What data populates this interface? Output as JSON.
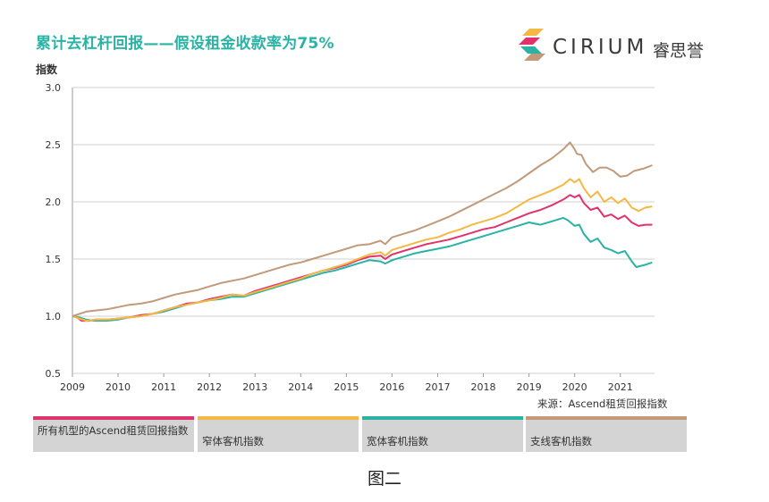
{
  "header": {
    "title": "累计去杠杆回报——假设租金收款率为75%",
    "logo_text": "CIRIUM",
    "logo_cn": "睿思誉"
  },
  "source_note": "来源：Ascend租赁回报指数",
  "figure_caption": "图二",
  "colors": {
    "title": "#2ab3a5",
    "all": "#e0336e",
    "narrow": "#f4b943",
    "wide": "#2ab3a5",
    "regional": "#c29a7a"
  },
  "chart_data": {
    "type": "line",
    "title": "累计去杠杆回报——假设租金收款率为75%",
    "ylabel": "指数",
    "xlabel": "",
    "xlim": [
      2009,
      2021.75
    ],
    "ylim": [
      0.5,
      3.0
    ],
    "yticks": [
      "0.5",
      "1.0",
      "1.5",
      "2.0",
      "2.5",
      "3.0"
    ],
    "xticks": [
      "2009",
      "2010",
      "2011",
      "2012",
      "2013",
      "2014",
      "2015",
      "2016",
      "2017",
      "2018",
      "2019",
      "2020",
      "2021"
    ],
    "grid": "horizontal",
    "legend_position": "bottom",
    "series": [
      {
        "name": "所有机型的Ascend租赁回报指数",
        "color": "#e0336e",
        "points": [
          [
            2009.0,
            1.0
          ],
          [
            2009.1,
            0.99
          ],
          [
            2009.2,
            0.96
          ],
          [
            2009.35,
            0.96
          ],
          [
            2009.5,
            0.97
          ],
          [
            2009.75,
            0.97
          ],
          [
            2010.0,
            0.98
          ],
          [
            2010.25,
            0.99
          ],
          [
            2010.5,
            1.01
          ],
          [
            2010.75,
            1.02
          ],
          [
            2011.0,
            1.05
          ],
          [
            2011.25,
            1.08
          ],
          [
            2011.5,
            1.11
          ],
          [
            2011.75,
            1.12
          ],
          [
            2012.0,
            1.15
          ],
          [
            2012.25,
            1.17
          ],
          [
            2012.5,
            1.19
          ],
          [
            2012.75,
            1.18
          ],
          [
            2013.0,
            1.22
          ],
          [
            2013.25,
            1.25
          ],
          [
            2013.5,
            1.28
          ],
          [
            2013.75,
            1.31
          ],
          [
            2014.0,
            1.34
          ],
          [
            2014.25,
            1.37
          ],
          [
            2014.5,
            1.4
          ],
          [
            2014.75,
            1.42
          ],
          [
            2015.0,
            1.45
          ],
          [
            2015.25,
            1.49
          ],
          [
            2015.5,
            1.52
          ],
          [
            2015.75,
            1.53
          ],
          [
            2015.85,
            1.5
          ],
          [
            2016.0,
            1.54
          ],
          [
            2016.25,
            1.57
          ],
          [
            2016.5,
            1.6
          ],
          [
            2016.75,
            1.63
          ],
          [
            2017.0,
            1.65
          ],
          [
            2017.25,
            1.67
          ],
          [
            2017.5,
            1.7
          ],
          [
            2017.75,
            1.73
          ],
          [
            2018.0,
            1.76
          ],
          [
            2018.25,
            1.78
          ],
          [
            2018.5,
            1.82
          ],
          [
            2018.75,
            1.86
          ],
          [
            2019.0,
            1.9
          ],
          [
            2019.25,
            1.93
          ],
          [
            2019.5,
            1.97
          ],
          [
            2019.75,
            2.02
          ],
          [
            2019.9,
            2.06
          ],
          [
            2020.0,
            2.04
          ],
          [
            2020.1,
            2.06
          ],
          [
            2020.2,
            1.99
          ],
          [
            2020.35,
            1.93
          ],
          [
            2020.5,
            1.95
          ],
          [
            2020.65,
            1.87
          ],
          [
            2020.8,
            1.89
          ],
          [
            2020.95,
            1.85
          ],
          [
            2021.1,
            1.88
          ],
          [
            2021.25,
            1.82
          ],
          [
            2021.4,
            1.79
          ],
          [
            2021.55,
            1.8
          ],
          [
            2021.7,
            1.8
          ]
        ]
      },
      {
        "name": "窄体客机指数",
        "color": "#f4b943",
        "points": [
          [
            2009.0,
            1.0
          ],
          [
            2009.15,
            0.98
          ],
          [
            2009.3,
            0.96
          ],
          [
            2009.5,
            0.97
          ],
          [
            2009.75,
            0.97
          ],
          [
            2010.0,
            0.98
          ],
          [
            2010.25,
            0.99
          ],
          [
            2010.5,
            1.0
          ],
          [
            2010.75,
            1.02
          ],
          [
            2011.0,
            1.05
          ],
          [
            2011.25,
            1.08
          ],
          [
            2011.5,
            1.1
          ],
          [
            2011.75,
            1.12
          ],
          [
            2012.0,
            1.14
          ],
          [
            2012.25,
            1.16
          ],
          [
            2012.5,
            1.19
          ],
          [
            2012.75,
            1.18
          ],
          [
            2013.0,
            1.21
          ],
          [
            2013.25,
            1.24
          ],
          [
            2013.5,
            1.27
          ],
          [
            2013.75,
            1.3
          ],
          [
            2014.0,
            1.33
          ],
          [
            2014.25,
            1.37
          ],
          [
            2014.5,
            1.4
          ],
          [
            2014.75,
            1.43
          ],
          [
            2015.0,
            1.46
          ],
          [
            2015.25,
            1.5
          ],
          [
            2015.5,
            1.54
          ],
          [
            2015.75,
            1.56
          ],
          [
            2015.85,
            1.53
          ],
          [
            2016.0,
            1.58
          ],
          [
            2016.25,
            1.61
          ],
          [
            2016.5,
            1.64
          ],
          [
            2016.75,
            1.67
          ],
          [
            2017.0,
            1.69
          ],
          [
            2017.25,
            1.73
          ],
          [
            2017.5,
            1.76
          ],
          [
            2017.75,
            1.8
          ],
          [
            2018.0,
            1.83
          ],
          [
            2018.25,
            1.86
          ],
          [
            2018.5,
            1.9
          ],
          [
            2018.75,
            1.96
          ],
          [
            2019.0,
            2.02
          ],
          [
            2019.25,
            2.06
          ],
          [
            2019.5,
            2.1
          ],
          [
            2019.75,
            2.15
          ],
          [
            2019.9,
            2.2
          ],
          [
            2020.0,
            2.17
          ],
          [
            2020.1,
            2.2
          ],
          [
            2020.2,
            2.12
          ],
          [
            2020.35,
            2.04
          ],
          [
            2020.5,
            2.09
          ],
          [
            2020.65,
            2.0
          ],
          [
            2020.8,
            2.04
          ],
          [
            2020.95,
            1.99
          ],
          [
            2021.1,
            2.03
          ],
          [
            2021.25,
            1.95
          ],
          [
            2021.4,
            1.92
          ],
          [
            2021.55,
            1.95
          ],
          [
            2021.7,
            1.96
          ]
        ]
      },
      {
        "name": "宽体客机指数",
        "color": "#2ab3a5",
        "points": [
          [
            2009.0,
            1.0
          ],
          [
            2009.15,
            0.99
          ],
          [
            2009.3,
            0.97
          ],
          [
            2009.5,
            0.96
          ],
          [
            2009.75,
            0.96
          ],
          [
            2010.0,
            0.97
          ],
          [
            2010.25,
            0.99
          ],
          [
            2010.5,
            1.0
          ],
          [
            2010.75,
            1.02
          ],
          [
            2011.0,
            1.04
          ],
          [
            2011.25,
            1.07
          ],
          [
            2011.5,
            1.1
          ],
          [
            2011.75,
            1.12
          ],
          [
            2012.0,
            1.14
          ],
          [
            2012.25,
            1.15
          ],
          [
            2012.5,
            1.17
          ],
          [
            2012.75,
            1.17
          ],
          [
            2013.0,
            1.2
          ],
          [
            2013.25,
            1.23
          ],
          [
            2013.5,
            1.26
          ],
          [
            2013.75,
            1.29
          ],
          [
            2014.0,
            1.32
          ],
          [
            2014.25,
            1.35
          ],
          [
            2014.5,
            1.38
          ],
          [
            2014.75,
            1.4
          ],
          [
            2015.0,
            1.43
          ],
          [
            2015.25,
            1.46
          ],
          [
            2015.5,
            1.49
          ],
          [
            2015.75,
            1.48
          ],
          [
            2015.85,
            1.46
          ],
          [
            2016.0,
            1.49
          ],
          [
            2016.25,
            1.52
          ],
          [
            2016.5,
            1.55
          ],
          [
            2016.75,
            1.57
          ],
          [
            2017.0,
            1.59
          ],
          [
            2017.25,
            1.61
          ],
          [
            2017.5,
            1.64
          ],
          [
            2017.75,
            1.67
          ],
          [
            2018.0,
            1.7
          ],
          [
            2018.25,
            1.73
          ],
          [
            2018.5,
            1.76
          ],
          [
            2018.75,
            1.79
          ],
          [
            2019.0,
            1.82
          ],
          [
            2019.25,
            1.8
          ],
          [
            2019.5,
            1.83
          ],
          [
            2019.75,
            1.86
          ],
          [
            2019.85,
            1.84
          ],
          [
            2020.0,
            1.79
          ],
          [
            2020.1,
            1.8
          ],
          [
            2020.2,
            1.72
          ],
          [
            2020.35,
            1.65
          ],
          [
            2020.5,
            1.68
          ],
          [
            2020.65,
            1.6
          ],
          [
            2020.8,
            1.58
          ],
          [
            2020.95,
            1.55
          ],
          [
            2021.1,
            1.57
          ],
          [
            2021.25,
            1.48
          ],
          [
            2021.35,
            1.43
          ],
          [
            2021.55,
            1.45
          ],
          [
            2021.7,
            1.47
          ]
        ]
      },
      {
        "name": "支线客机指数",
        "color": "#c29a7a",
        "points": [
          [
            2009.0,
            1.0
          ],
          [
            2009.15,
            1.02
          ],
          [
            2009.3,
            1.04
          ],
          [
            2009.5,
            1.05
          ],
          [
            2009.75,
            1.06
          ],
          [
            2010.0,
            1.08
          ],
          [
            2010.25,
            1.1
          ],
          [
            2010.5,
            1.11
          ],
          [
            2010.75,
            1.13
          ],
          [
            2011.0,
            1.16
          ],
          [
            2011.25,
            1.19
          ],
          [
            2011.5,
            1.21
          ],
          [
            2011.75,
            1.23
          ],
          [
            2012.0,
            1.26
          ],
          [
            2012.25,
            1.29
          ],
          [
            2012.5,
            1.31
          ],
          [
            2012.75,
            1.33
          ],
          [
            2013.0,
            1.36
          ],
          [
            2013.25,
            1.39
          ],
          [
            2013.5,
            1.42
          ],
          [
            2013.75,
            1.45
          ],
          [
            2014.0,
            1.47
          ],
          [
            2014.25,
            1.5
          ],
          [
            2014.5,
            1.53
          ],
          [
            2014.75,
            1.56
          ],
          [
            2015.0,
            1.59
          ],
          [
            2015.25,
            1.62
          ],
          [
            2015.5,
            1.63
          ],
          [
            2015.75,
            1.66
          ],
          [
            2015.85,
            1.63
          ],
          [
            2016.0,
            1.69
          ],
          [
            2016.25,
            1.72
          ],
          [
            2016.5,
            1.75
          ],
          [
            2016.75,
            1.79
          ],
          [
            2017.0,
            1.83
          ],
          [
            2017.25,
            1.87
          ],
          [
            2017.5,
            1.92
          ],
          [
            2017.75,
            1.97
          ],
          [
            2018.0,
            2.02
          ],
          [
            2018.25,
            2.07
          ],
          [
            2018.5,
            2.12
          ],
          [
            2018.75,
            2.18
          ],
          [
            2019.0,
            2.25
          ],
          [
            2019.25,
            2.32
          ],
          [
            2019.5,
            2.38
          ],
          [
            2019.75,
            2.46
          ],
          [
            2019.9,
            2.52
          ],
          [
            2020.0,
            2.46
          ],
          [
            2020.05,
            2.42
          ],
          [
            2020.15,
            2.41
          ],
          [
            2020.25,
            2.33
          ],
          [
            2020.4,
            2.26
          ],
          [
            2020.55,
            2.3
          ],
          [
            2020.7,
            2.3
          ],
          [
            2020.85,
            2.27
          ],
          [
            2021.0,
            2.22
          ],
          [
            2021.15,
            2.23
          ],
          [
            2021.3,
            2.27
          ],
          [
            2021.5,
            2.29
          ],
          [
            2021.7,
            2.32
          ]
        ]
      }
    ]
  }
}
